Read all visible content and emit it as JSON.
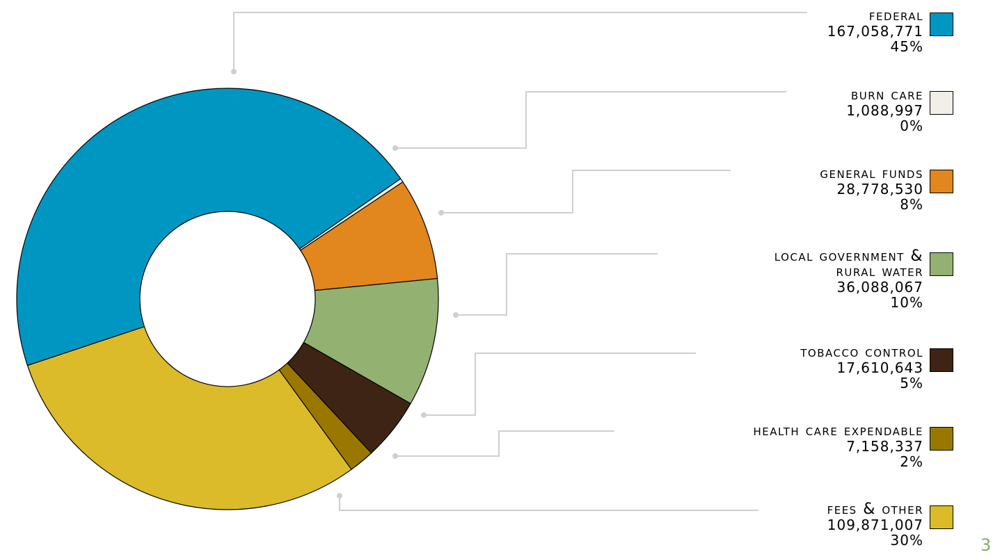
{
  "chart_data": {
    "type": "pie",
    "donut": true,
    "categories": [
      "Federal",
      "Burn Care",
      "General Funds",
      "Local Government & Rural Water",
      "Tobacco Control",
      "Health Care Expendable",
      "Fees & Other"
    ],
    "values": [
      167058771,
      1088997,
      28778530,
      36088067,
      17610643,
      7158337,
      109871007
    ],
    "series": [
      {
        "label_lines": [
          "Federal"
        ],
        "value_text": "167,058,771",
        "percent_text": "45%",
        "color": "#0096c2"
      },
      {
        "label_lines": [
          "Burn Care"
        ],
        "value_text": "1,088,997",
        "percent_text": "0%",
        "color": "#f2efe8"
      },
      {
        "label_lines": [
          "General Funds"
        ],
        "value_text": "28,778,530",
        "percent_text": "8%",
        "color": "#e2861e"
      },
      {
        "label_lines": [
          "Local Government &",
          "Rural Water"
        ],
        "value_text": "36,088,067",
        "percent_text": "10%",
        "color": "#93b272"
      },
      {
        "label_lines": [
          "Tobacco Control"
        ],
        "value_text": "17,610,643",
        "percent_text": "5%",
        "color": "#3e2414"
      },
      {
        "label_lines": [
          "Health Care Expendable"
        ],
        "value_text": "7,158,337",
        "percent_text": "2%",
        "color": "#9a7800"
      },
      {
        "label_lines": [
          "Fees & Other"
        ],
        "value_text": "109,871,007",
        "percent_text": "30%",
        "color": "#dbbb2a"
      }
    ],
    "legend_placement": "right"
  },
  "page_number": "3"
}
